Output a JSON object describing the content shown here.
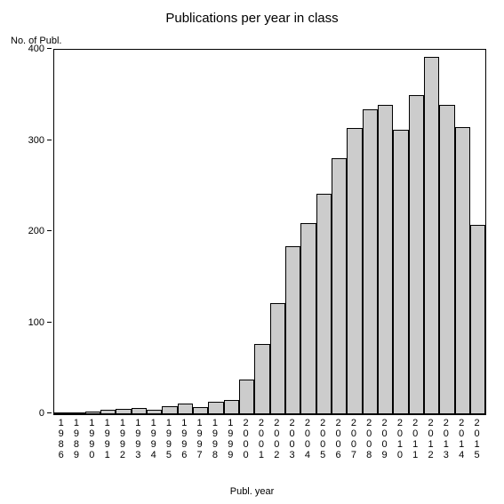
{
  "chart": {
    "type": "bar",
    "title": "Publications per year in class",
    "y_axis_label": "No. of Publ.",
    "x_axis_label": "Publ. year",
    "title_fontsize": 15,
    "label_fontsize": 11,
    "tick_fontsize": 11,
    "background_color": "#ffffff",
    "bar_color": "#cccccc",
    "bar_border_color": "#000000",
    "axis_color": "#000000",
    "text_color": "#000000",
    "ylim": [
      0,
      400
    ],
    "ytick_step": 100,
    "yticks": [
      0,
      100,
      200,
      300,
      400
    ],
    "categories": [
      "1986",
      "1989",
      "1990",
      "1991",
      "1992",
      "1993",
      "1994",
      "1995",
      "1996",
      "1997",
      "1998",
      "1999",
      "2000",
      "2001",
      "2002",
      "2003",
      "2004",
      "2005",
      "2006",
      "2007",
      "2008",
      "2009",
      "2010",
      "2011",
      "2012",
      "2013",
      "2014",
      "2015"
    ],
    "values": [
      1,
      2,
      3,
      5,
      6,
      7,
      5,
      9,
      12,
      8,
      14,
      16,
      38,
      77,
      122,
      184,
      210,
      242,
      281,
      314,
      335,
      340,
      312,
      350,
      392,
      340,
      315,
      208
    ],
    "bar_width": 1.0,
    "plot_border_width": 1
  }
}
